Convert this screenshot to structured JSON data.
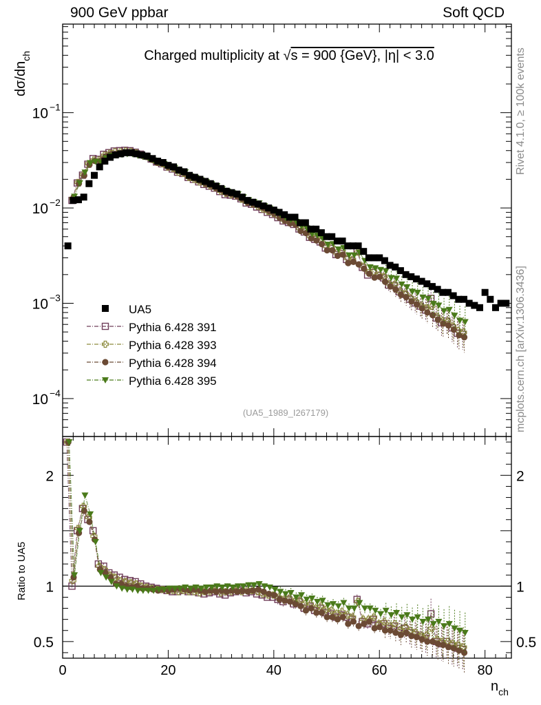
{
  "header": {
    "left": "900 GeV ppbar",
    "right": "Soft QCD"
  },
  "side_labels": {
    "rivet": "Rivet 4.1.0, ≥ 100k events",
    "mcplots": "mcplots.cern.ch [arXiv:1306.3436]"
  },
  "chart_data": [
    {
      "type": "scatter",
      "panel": "main",
      "title": "Charged multiplicity at √s = 900 {GeV}, |η| < 3.0",
      "title_parts": {
        "pre": "Charged multiplicity at ",
        "root": "√",
        "post": "s = 900 {GeV}, |η| < 3.0"
      },
      "ylabel": "dσ/dn_ch",
      "ylabel_parts": {
        "main": "dσ/dn",
        "sub": "ch"
      },
      "xlabel": "n_ch",
      "xlabel_parts": {
        "main": "n",
        "sub": "ch"
      },
      "yscale": "log",
      "ylim": [
        4e-05,
        0.85
      ],
      "xlim": [
        0,
        85
      ],
      "y_ticks": [
        {
          "value": 0.1,
          "label": "10",
          "exp": "−1"
        },
        {
          "value": 0.01,
          "label": "10",
          "exp": "−2"
        },
        {
          "value": 0.001,
          "label": "10",
          "exp": "−3"
        },
        {
          "value": 0.0001,
          "label": "10",
          "exp": "−4"
        }
      ],
      "watermark": "(UA5_1989_I267179)",
      "legend_position": "lower-left",
      "series": [
        {
          "name": "UA5",
          "color": "#000000",
          "marker": "filled-square",
          "line": "none",
          "x": [
            1,
            2,
            3,
            4,
            5,
            6,
            7,
            8,
            9,
            10,
            11,
            12,
            13,
            14,
            15,
            16,
            17,
            18,
            19,
            20,
            21,
            22,
            23,
            24,
            25,
            26,
            27,
            28,
            29,
            30,
            31,
            32,
            33,
            34,
            35,
            36,
            37,
            38,
            39,
            40,
            41,
            42,
            43,
            44,
            45,
            46,
            47,
            48,
            49,
            50,
            51,
            52,
            53,
            54,
            55,
            56,
            57,
            58,
            59,
            60,
            61,
            62,
            63,
            64,
            65,
            66,
            67,
            68,
            69,
            70,
            71,
            72,
            73,
            74,
            75,
            76,
            77,
            78,
            79,
            80,
            81,
            82,
            83,
            84
          ],
          "values": [
            0.004,
            0.012,
            0.0122,
            0.013,
            0.018,
            0.022,
            0.027,
            0.031,
            0.034,
            0.036,
            0.037,
            0.038,
            0.038,
            0.037,
            0.036,
            0.035,
            0.033,
            0.031,
            0.03,
            0.028,
            0.027,
            0.025,
            0.024,
            0.022,
            0.021,
            0.02,
            0.019,
            0.018,
            0.017,
            0.016,
            0.015,
            0.0145,
            0.014,
            0.013,
            0.012,
            0.0115,
            0.011,
            0.0105,
            0.01,
            0.0095,
            0.009,
            0.0085,
            0.008,
            0.008,
            0.007,
            0.007,
            0.006,
            0.006,
            0.0055,
            0.005,
            0.005,
            0.0045,
            0.0045,
            0.004,
            0.004,
            0.004,
            0.0035,
            0.003,
            0.003,
            0.003,
            0.0028,
            0.0025,
            0.0024,
            0.0022,
            0.002,
            0.0019,
            0.0018,
            0.0017,
            0.0016,
            0.0015,
            0.0014,
            0.0013,
            0.0013,
            0.0012,
            0.0011,
            0.0011,
            0.001,
            0.00095,
            0.0009,
            0.0013,
            0.0011,
            0.0009,
            0.001,
            0.001
          ]
        },
        {
          "name": "Pythia 6.428 391",
          "color": "#6f3d59",
          "marker": "open-square",
          "line": "dash-dot",
          "ratio_x": [
            1,
            2,
            3,
            4,
            5,
            6,
            7,
            8,
            9,
            10,
            11,
            12,
            13,
            14,
            15,
            16,
            17,
            18,
            19,
            20,
            21,
            22,
            23,
            24,
            25,
            26,
            27,
            28,
            29,
            30,
            31,
            32,
            33,
            34,
            35,
            36,
            37,
            38,
            39,
            40,
            41,
            42,
            43,
            44,
            45,
            46,
            47,
            48,
            49,
            50,
            51,
            52,
            53,
            54,
            55,
            56,
            57,
            58,
            59,
            60,
            61,
            62,
            63,
            64,
            65,
            66,
            67,
            68,
            69,
            70,
            71,
            72,
            73,
            74,
            75,
            76
          ],
          "ratio": [
            2.3,
            1.0,
            1.5,
            1.7,
            1.6,
            1.5,
            1.2,
            1.18,
            1.12,
            1.1,
            1.08,
            1.06,
            1.05,
            1.04,
            1.02,
            1.0,
            0.99,
            0.98,
            0.97,
            0.96,
            0.95,
            0.95,
            0.96,
            0.95,
            0.95,
            0.94,
            0.93,
            0.94,
            0.95,
            0.93,
            0.92,
            0.94,
            0.95,
            0.96,
            0.94,
            0.95,
            0.93,
            0.92,
            0.9,
            0.9,
            0.88,
            0.86,
            0.88,
            0.84,
            0.86,
            0.8,
            0.82,
            0.78,
            0.8,
            0.76,
            0.75,
            0.72,
            0.74,
            0.72,
            0.7,
            0.88,
            0.68,
            0.66,
            0.7,
            0.65,
            0.66,
            0.62,
            0.64,
            0.6,
            0.62,
            0.58,
            0.56,
            0.55,
            0.53,
            0.75,
            0.5,
            0.48,
            0.5,
            0.46,
            0.44,
            0.43
          ]
        },
        {
          "name": "Pythia 6.428 393",
          "color": "#8c8a3c",
          "marker": "open-cross",
          "line": "dash-dot",
          "ratio_x": [
            1,
            2,
            3,
            4,
            5,
            6,
            7,
            8,
            9,
            10,
            11,
            12,
            13,
            14,
            15,
            16,
            17,
            18,
            19,
            20,
            21,
            22,
            23,
            24,
            25,
            26,
            27,
            28,
            29,
            30,
            31,
            32,
            33,
            34,
            35,
            36,
            37,
            38,
            39,
            40,
            41,
            42,
            43,
            44,
            45,
            46,
            47,
            48,
            49,
            50,
            51,
            52,
            53,
            54,
            55,
            56,
            57,
            58,
            59,
            60,
            61,
            62,
            63,
            64,
            65,
            66,
            67,
            68,
            69,
            70,
            71,
            72,
            73,
            74,
            75,
            76
          ],
          "ratio": [
            2.3,
            1.05,
            1.52,
            1.72,
            1.62,
            1.45,
            1.18,
            1.15,
            1.1,
            1.08,
            1.05,
            1.04,
            1.03,
            1.02,
            1.0,
            0.99,
            0.98,
            0.97,
            0.97,
            0.96,
            0.96,
            0.95,
            0.96,
            0.95,
            0.95,
            0.94,
            0.95,
            0.95,
            0.96,
            0.94,
            0.95,
            0.95,
            0.96,
            0.95,
            0.96,
            0.96,
            0.95,
            0.93,
            0.92,
            0.92,
            0.9,
            0.88,
            0.89,
            0.86,
            0.87,
            0.84,
            0.84,
            0.8,
            0.82,
            0.79,
            0.78,
            0.75,
            0.77,
            0.74,
            0.72,
            0.86,
            0.7,
            0.7,
            0.72,
            0.66,
            0.68,
            0.64,
            0.66,
            0.6,
            0.63,
            0.6,
            0.58,
            0.55,
            0.56,
            0.62,
            0.52,
            0.5,
            0.5,
            0.48,
            0.47,
            0.45
          ]
        },
        {
          "name": "Pythia 6.428 394",
          "color": "#6b4a34",
          "marker": "filled-circle",
          "line": "dash-dot",
          "ratio_x": [
            1,
            2,
            3,
            4,
            5,
            6,
            7,
            8,
            9,
            10,
            11,
            12,
            13,
            14,
            15,
            16,
            17,
            18,
            19,
            20,
            21,
            22,
            23,
            24,
            25,
            26,
            27,
            28,
            29,
            30,
            31,
            32,
            33,
            34,
            35,
            36,
            37,
            38,
            39,
            40,
            41,
            42,
            43,
            44,
            45,
            46,
            47,
            48,
            49,
            50,
            51,
            52,
            53,
            54,
            55,
            56,
            57,
            58,
            59,
            60,
            61,
            62,
            63,
            64,
            65,
            66,
            67,
            68,
            69,
            70,
            71,
            72,
            73,
            74,
            75,
            76
          ],
          "ratio": [
            2.3,
            1.08,
            1.48,
            1.68,
            1.58,
            1.42,
            1.15,
            1.12,
            1.08,
            1.02,
            1.02,
            1.0,
            0.99,
            1.0,
            0.98,
            0.98,
            0.97,
            0.96,
            0.97,
            0.96,
            0.97,
            0.98,
            0.97,
            0.96,
            0.97,
            0.96,
            0.95,
            0.96,
            0.95,
            0.96,
            0.95,
            0.96,
            0.95,
            0.96,
            0.95,
            0.96,
            0.97,
            0.95,
            0.93,
            0.92,
            0.88,
            0.87,
            0.86,
            0.84,
            0.82,
            0.78,
            0.8,
            0.76,
            0.76,
            0.72,
            0.72,
            0.7,
            0.72,
            0.66,
            0.68,
            0.64,
            0.66,
            0.68,
            0.62,
            0.63,
            0.6,
            0.6,
            0.58,
            0.56,
            0.58,
            0.55,
            0.54,
            0.52,
            0.5,
            0.5,
            0.48,
            0.47,
            0.45,
            0.44,
            0.42,
            0.4
          ]
        },
        {
          "name": "Pythia 6.428 395",
          "color": "#4a7a1a",
          "marker": "filled-triangle-down",
          "line": "dash-dot",
          "ratio_x": [
            1,
            2,
            3,
            4,
            5,
            6,
            7,
            8,
            9,
            10,
            11,
            12,
            13,
            14,
            15,
            16,
            17,
            18,
            19,
            20,
            21,
            22,
            23,
            24,
            25,
            26,
            27,
            28,
            29,
            30,
            31,
            32,
            33,
            34,
            35,
            36,
            37,
            38,
            39,
            40,
            41,
            42,
            43,
            44,
            45,
            46,
            47,
            48,
            49,
            50,
            51,
            52,
            53,
            54,
            55,
            56,
            57,
            58,
            59,
            60,
            61,
            62,
            63,
            64,
            65,
            66,
            67,
            68,
            69,
            70,
            71,
            72,
            73,
            74,
            75,
            76
          ],
          "ratio": [
            2.3,
            1.1,
            1.5,
            1.82,
            1.65,
            1.4,
            1.12,
            1.08,
            1.04,
            1.0,
            0.98,
            0.97,
            0.97,
            0.96,
            0.96,
            0.96,
            0.96,
            0.97,
            0.97,
            0.98,
            0.98,
            0.98,
            0.99,
            0.98,
            0.99,
            0.98,
            0.99,
            0.99,
            1.0,
            0.99,
            1.0,
            0.99,
            1.0,
            1.0,
            1.01,
            1.01,
            1.02,
            1.0,
            0.99,
            0.97,
            0.95,
            0.93,
            0.94,
            0.9,
            0.92,
            0.88,
            0.89,
            0.86,
            0.87,
            0.83,
            0.84,
            0.82,
            0.85,
            0.8,
            0.8,
            0.85,
            0.8,
            0.8,
            0.78,
            0.75,
            0.78,
            0.74,
            0.76,
            0.72,
            0.74,
            0.7,
            0.72,
            0.68,
            0.7,
            0.66,
            0.68,
            0.64,
            0.66,
            0.62,
            0.6,
            0.58
          ]
        }
      ]
    },
    {
      "type": "scatter",
      "panel": "ratio",
      "ylabel": "Ratio to UA5",
      "xlabel": "n_ch",
      "ylim": [
        0.35,
        2.35
      ],
      "xlim": [
        0,
        85
      ],
      "reference_line": 1,
      "y_ticks": [
        2,
        1,
        0.5
      ],
      "y_tick_labels": [
        "2",
        "1",
        "0.5"
      ],
      "x_ticks": [
        0,
        20,
        40,
        60,
        80
      ],
      "x_tick_labels": [
        "0",
        "20",
        "40",
        "60",
        "80"
      ]
    }
  ]
}
